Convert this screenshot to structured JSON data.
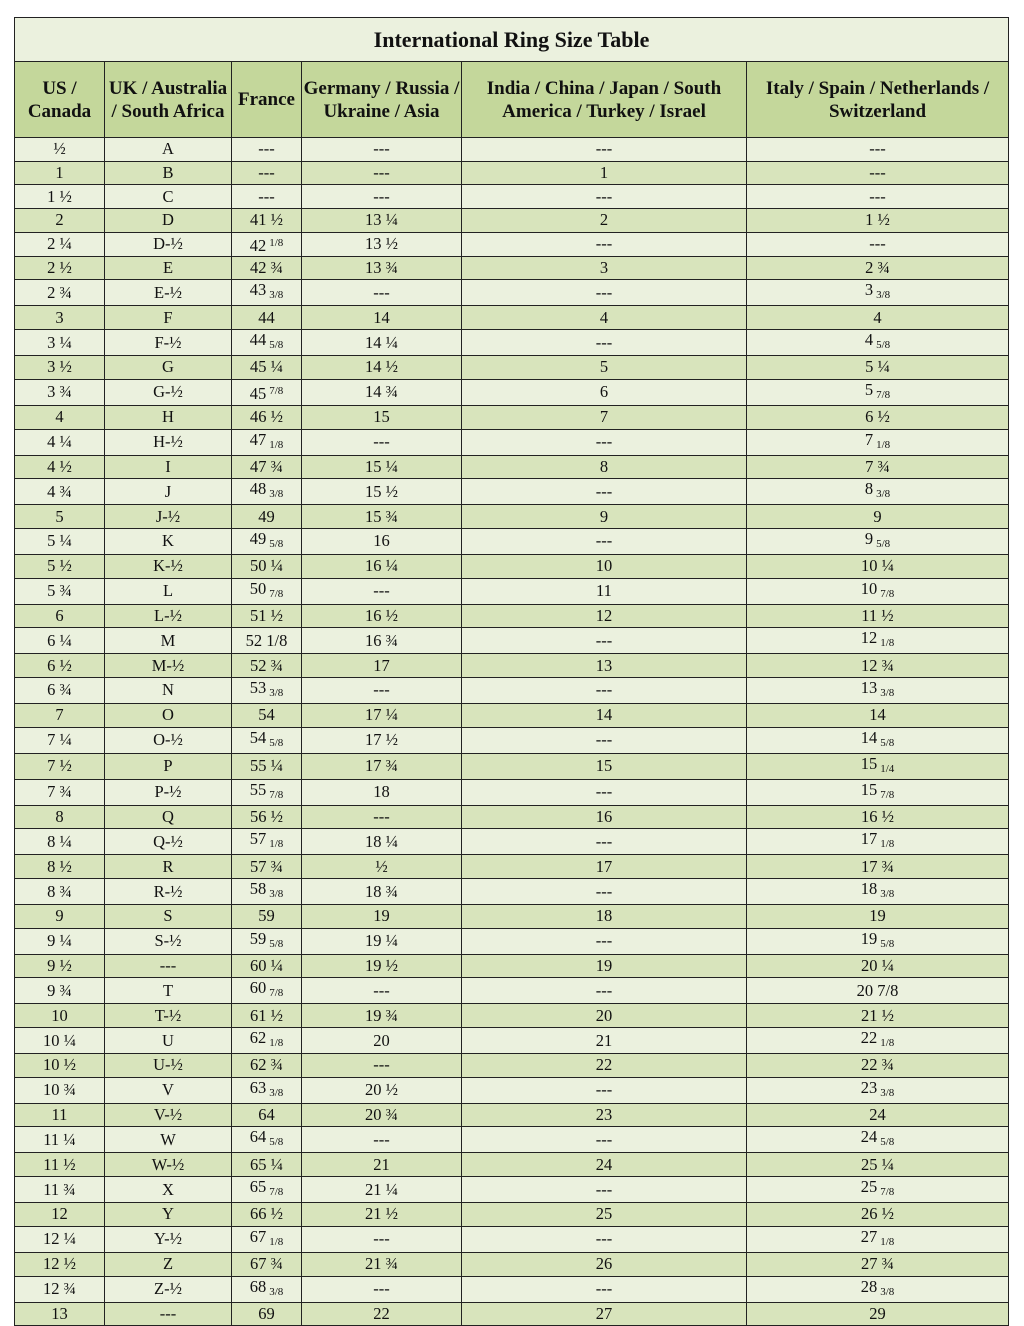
{
  "title": "International Ring Size Table",
  "columns": [
    "US / Canada",
    "UK / Australia / South Africa",
    "France",
    "Germany / Russia / Ukraine / Asia",
    "India / China / Japan / South America / Turkey / Israel",
    "Italy / Spain / Netherlands / Switzerland"
  ],
  "colors": {
    "header": "#c4d79b",
    "row_light": "#ebf1de",
    "row_dark": "#d8e4bc"
  },
  "rows": [
    [
      "½",
      "A",
      "---",
      "---",
      "---",
      "---"
    ],
    [
      "1",
      "B",
      "---",
      "---",
      "1",
      "---"
    ],
    [
      "1 ½",
      "C",
      "---",
      "---",
      "---",
      "---"
    ],
    [
      "2",
      "D",
      "41 ½",
      "13 ¼",
      "2",
      "1 ½"
    ],
    [
      "2 ¼",
      "D-½",
      {
        "v": "42",
        "sup": "1/8"
      },
      "13 ½",
      "---",
      "---"
    ],
    [
      "2 ½",
      "E",
      "42 ¾",
      "13 ¾",
      "3",
      "2 ¾"
    ],
    [
      "2 ¾",
      "E-½",
      {
        "v": "43",
        "sub": "3/8"
      },
      "---",
      "---",
      {
        "v": "3",
        "sub": "3/8"
      }
    ],
    [
      "3",
      "F",
      "44",
      "14",
      "4",
      "4"
    ],
    [
      "3 ¼",
      "F-½",
      {
        "v": "44",
        "sub": "5/8"
      },
      "14 ¼",
      "---",
      {
        "v": "4",
        "sub": "5/8"
      }
    ],
    [
      "3 ½",
      "G",
      "45 ¼",
      "14 ½",
      "5",
      "5 ¼"
    ],
    [
      "3 ¾",
      "G-½",
      {
        "v": "45",
        "sup": "7/8"
      },
      "14 ¾",
      "6",
      {
        "v": "5",
        "sub": "7/8"
      }
    ],
    [
      "4",
      "H",
      "46 ½",
      "15",
      "7",
      "6 ½"
    ],
    [
      "4 ¼",
      "H-½",
      {
        "v": "47",
        "sub": "1/8"
      },
      "---",
      "---",
      {
        "v": "7",
        "sub": "1/8"
      }
    ],
    [
      "4 ½",
      "I",
      "47 ¾",
      "15 ¼",
      "8",
      "7 ¾"
    ],
    [
      "4 ¾",
      "J",
      {
        "v": "48",
        "sub": "3/8"
      },
      "15 ½",
      "---",
      {
        "v": "8",
        "sub": "3/8"
      }
    ],
    [
      "5",
      "J-½",
      "49",
      "15 ¾",
      "9",
      "9"
    ],
    [
      "5 ¼",
      "K",
      {
        "v": "49",
        "sub": "5/8"
      },
      "16",
      "---",
      {
        "v": "9",
        "sub": "5/8"
      }
    ],
    [
      "5 ½",
      "K-½",
      "50 ¼",
      "16 ¼",
      "10",
      "10 ¼"
    ],
    [
      "5 ¾",
      "L",
      {
        "v": "50",
        "sub": "7/8"
      },
      "---",
      "11",
      {
        "v": "10",
        "sub": "7/8"
      }
    ],
    [
      "6",
      "L-½",
      "51 ½",
      "16 ½",
      "12",
      "11 ½"
    ],
    [
      "6 ¼",
      "M",
      "52 1/8",
      "16 ¾",
      "---",
      {
        "v": "12",
        "sub": "1/8"
      }
    ],
    [
      "6 ½",
      "M-½",
      "52 ¾",
      "17",
      "13",
      "12 ¾"
    ],
    [
      "6 ¾",
      "N",
      {
        "v": "53",
        "sub": "3/8"
      },
      "---",
      "---",
      {
        "v": "13",
        "sub": "3/8"
      }
    ],
    [
      "7",
      "O",
      "54",
      "17 ¼",
      "14",
      "14"
    ],
    [
      "7 ¼",
      "O-½",
      {
        "v": "54",
        "sub": "5/8"
      },
      "17 ½",
      "---",
      {
        "v": "14",
        "sub": "5/8"
      }
    ],
    [
      "7 ½",
      "P",
      "55 ¼",
      "17 ¾",
      "15",
      {
        "v": "15",
        "sub": "1/4"
      }
    ],
    [
      "7 ¾",
      "P-½",
      {
        "v": "55",
        "sub": "7/8"
      },
      "18",
      "---",
      {
        "v": "15",
        "sub": "7/8"
      }
    ],
    [
      "8",
      "Q",
      "56 ½",
      "---",
      "16",
      "16 ½"
    ],
    [
      "8 ¼",
      "Q-½",
      {
        "v": "57",
        "sub": "1/8"
      },
      "18 ¼",
      "---",
      {
        "v": "17",
        "sub": "1/8"
      }
    ],
    [
      "8 ½",
      "R",
      "57 ¾",
      "½",
      "17",
      "17 ¾"
    ],
    [
      "8 ¾",
      "R-½",
      {
        "v": "58",
        "sub": "3/8"
      },
      "18 ¾",
      "---",
      {
        "v": "18",
        "sub": "3/8"
      }
    ],
    [
      "9",
      "S",
      "59",
      "19",
      "18",
      "19"
    ],
    [
      "9 ¼",
      "S-½",
      {
        "v": "59",
        "sub": "5/8"
      },
      "19 ¼",
      "---",
      {
        "v": "19",
        "sub": "5/8"
      }
    ],
    [
      "9 ½",
      "---",
      "60 ¼",
      "19 ½",
      "19",
      "20 ¼"
    ],
    [
      "9 ¾",
      "T",
      {
        "v": "60",
        "sub": "7/8"
      },
      "---",
      "---",
      "20 7/8"
    ],
    [
      "10",
      "T-½",
      "61 ½",
      "19 ¾",
      "20",
      "21 ½"
    ],
    [
      "10 ¼",
      "U",
      {
        "v": "62",
        "sub": "1/8"
      },
      "20",
      "21",
      {
        "v": "22",
        "sub": "1/8"
      }
    ],
    [
      "10 ½",
      "U-½",
      "62 ¾",
      "---",
      "22",
      "22 ¾"
    ],
    [
      "10 ¾",
      "V",
      {
        "v": "63",
        "sub": "3/8"
      },
      "20 ½",
      "---",
      {
        "v": "23",
        "sub": "3/8"
      }
    ],
    [
      "11",
      "V-½",
      "64",
      "20 ¾",
      "23",
      "24"
    ],
    [
      "11 ¼",
      "W",
      {
        "v": "64",
        "sub": "5/8"
      },
      "---",
      "---",
      {
        "v": "24",
        "sub": "5/8"
      }
    ],
    [
      "11 ½",
      "W-½",
      "65 ¼",
      "21",
      "24",
      "25 ¼"
    ],
    [
      "11 ¾",
      "X",
      {
        "v": "65",
        "sub": "7/8"
      },
      "21 ¼",
      "---",
      {
        "v": "25",
        "sub": "7/8"
      }
    ],
    [
      "12",
      "Y",
      "66 ½",
      "21 ½",
      "25",
      "26 ½"
    ],
    [
      "12 ¼",
      "Y-½",
      {
        "v": "67",
        "sub": "1/8"
      },
      "---",
      "---",
      {
        "v": "27",
        "sub": "1/8"
      }
    ],
    [
      "12 ½",
      "Z",
      "67 ¾",
      "21 ¾",
      "26",
      "27 ¾"
    ],
    [
      "12 ¾",
      "Z-½",
      {
        "v": "68",
        "sub": "3/8"
      },
      "---",
      "---",
      {
        "v": "28",
        "sub": "3/8"
      }
    ],
    [
      "13",
      "---",
      "69",
      "22",
      "27",
      "29"
    ]
  ]
}
